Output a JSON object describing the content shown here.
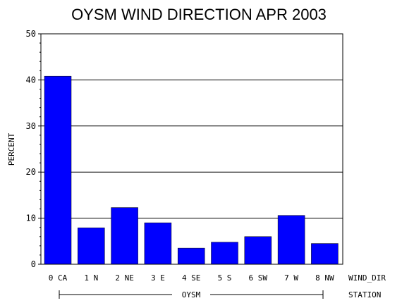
{
  "chart_data": {
    "type": "bar",
    "title": "OYSM WIND DIRECTION APR 2003",
    "ylabel": "PERCENT",
    "xlabel": "WIND_DIR",
    "group_axis_label": "STATION",
    "group_name": "OYSM",
    "categories": [
      "0 CA",
      "1 N",
      "2 NE",
      "3 E",
      "4 SE",
      "5 S",
      "6 SW",
      "7 W",
      "8 NW"
    ],
    "values": [
      40.8,
      7.9,
      12.3,
      9.0,
      3.5,
      4.8,
      6.0,
      10.6,
      4.5
    ],
    "ylim": [
      0,
      50
    ],
    "yticks": [
      "0",
      "10",
      "20",
      "30",
      "40",
      "50"
    ],
    "grid": true,
    "bar_color": "#0000ff"
  }
}
